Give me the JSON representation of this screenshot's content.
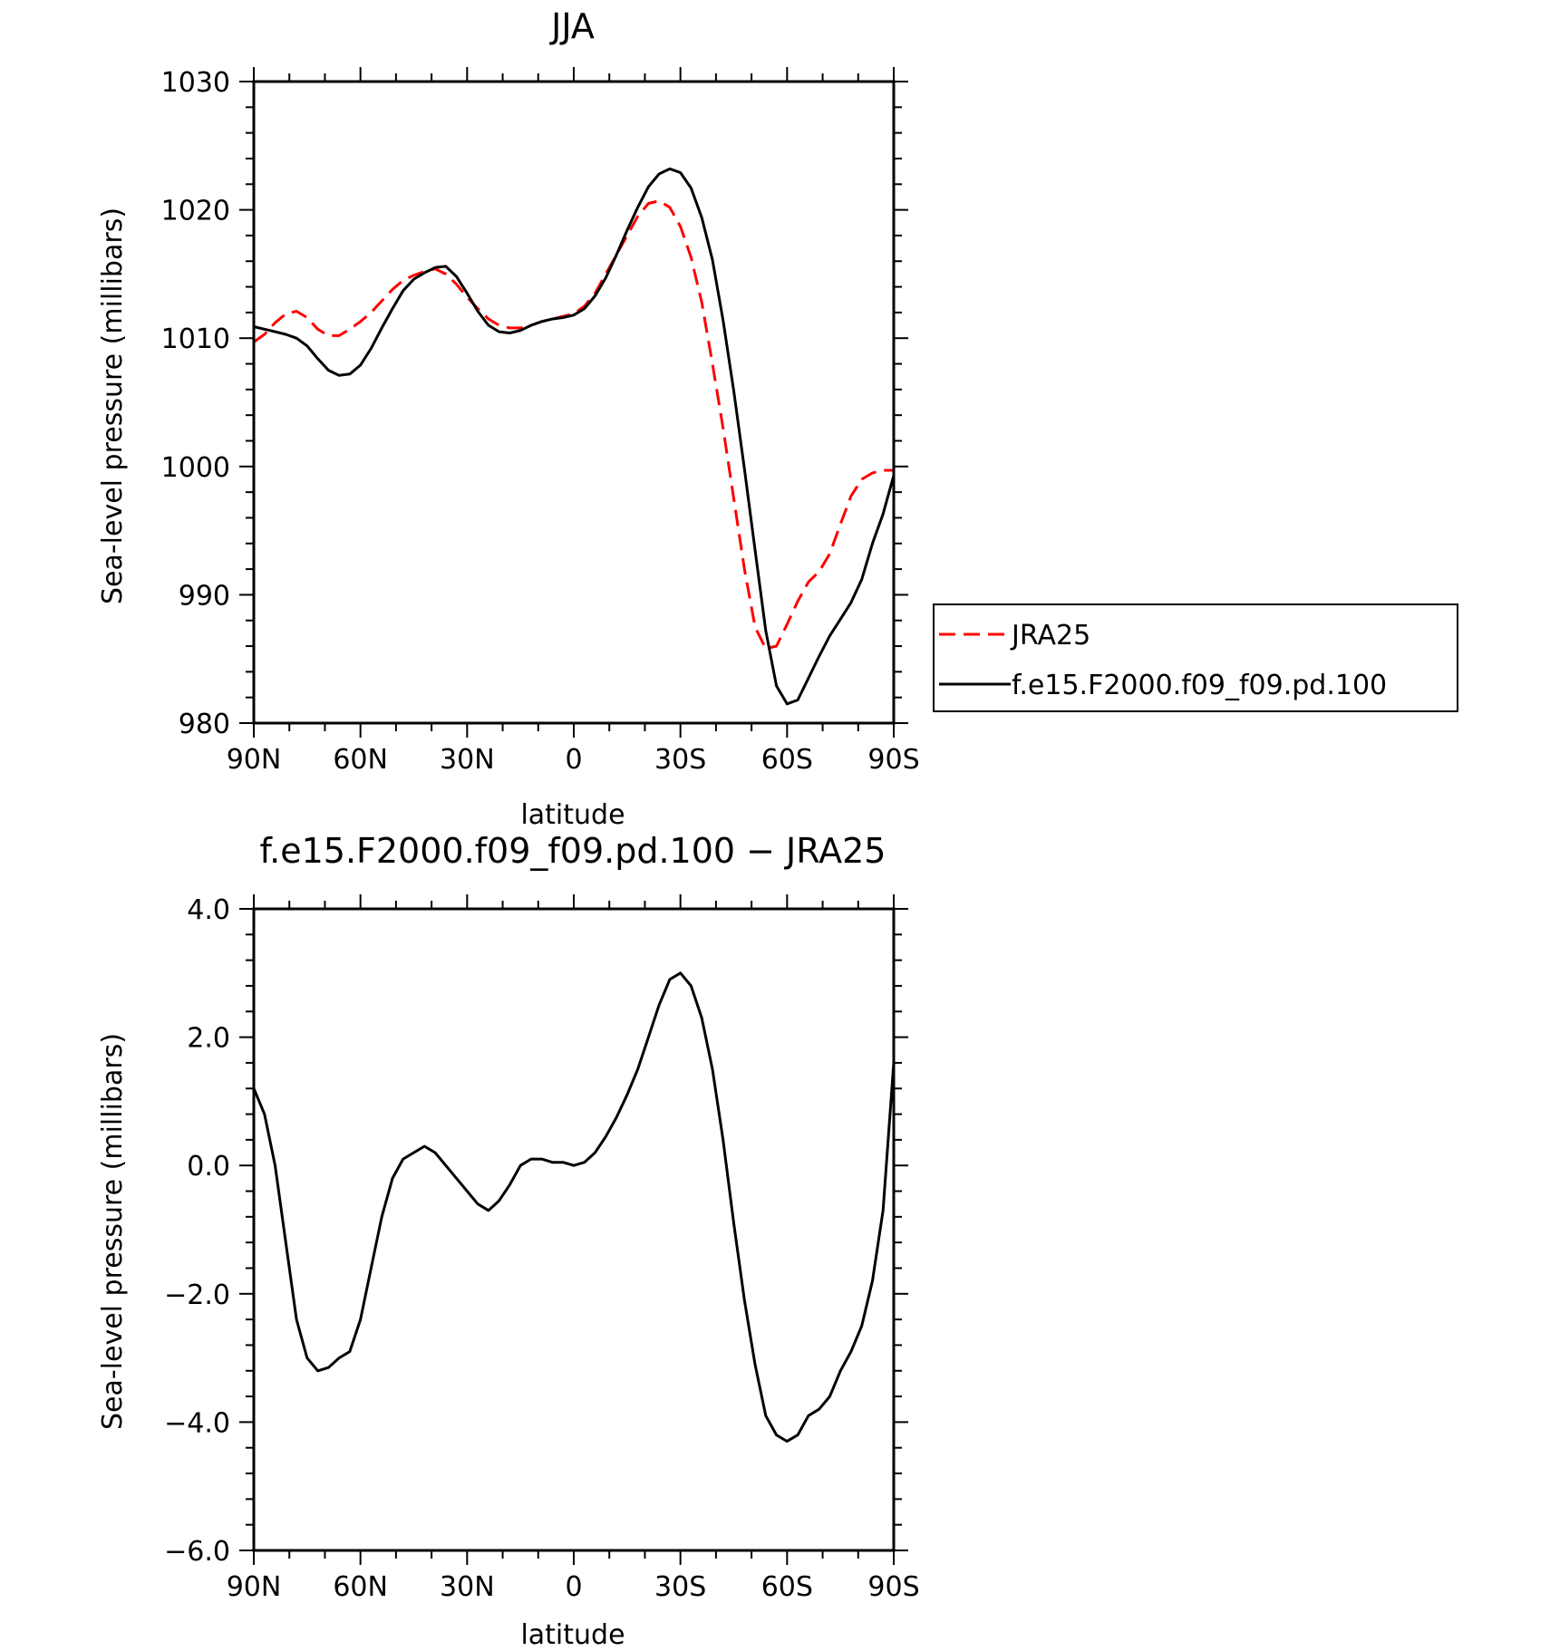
{
  "chart_data": [
    {
      "type": "line",
      "title": "JJA",
      "xlabel": "latitude",
      "ylabel": "Sea-level pressure (millibars)",
      "x_tick_labels": [
        "90N",
        "60N",
        "30N",
        "0",
        "30S",
        "60S",
        "90S"
      ],
      "x_tick_values": [
        -90,
        -60,
        -30,
        0,
        30,
        60,
        90
      ],
      "y_tick_labels": [
        "980",
        "990",
        "1000",
        "1010",
        "1020",
        "1030"
      ],
      "y_tick_values": [
        980,
        990,
        1000,
        1010,
        1020,
        1030
      ],
      "xlim": [
        -90,
        90
      ],
      "ylim": [
        980,
        1030
      ],
      "legend_position": "right",
      "series": [
        {
          "name": "JRA25",
          "color": "#ff0000",
          "dash": "dashed",
          "x": [
            -90,
            -87,
            -84,
            -81,
            -78,
            -75,
            -72,
            -69,
            -66,
            -63,
            -60,
            -57,
            -54,
            -51,
            -48,
            -45,
            -42,
            -39,
            -36,
            -33,
            -30,
            -27,
            -24,
            -21,
            -18,
            -15,
            -12,
            -9,
            -6,
            -3,
            0,
            3,
            6,
            9,
            12,
            15,
            18,
            21,
            24,
            27,
            30,
            33,
            36,
            39,
            42,
            45,
            48,
            51,
            54,
            57,
            60,
            63,
            66,
            69,
            72,
            75,
            78,
            81,
            84,
            87,
            90
          ],
          "y": [
            1009.7,
            1010.3,
            1011.2,
            1011.9,
            1012.1,
            1011.6,
            1010.7,
            1010.2,
            1010.2,
            1010.7,
            1011.3,
            1012.0,
            1012.9,
            1013.8,
            1014.5,
            1014.9,
            1015.2,
            1015.4,
            1015.0,
            1014.2,
            1013.2,
            1012.3,
            1011.5,
            1011.0,
            1010.8,
            1010.8,
            1011.0,
            1011.3,
            1011.5,
            1011.7,
            1011.9,
            1012.5,
            1013.5,
            1015.0,
            1016.5,
            1018.0,
            1019.5,
            1020.5,
            1020.7,
            1020.2,
            1018.7,
            1016.3,
            1012.8,
            1008.0,
            1003.0,
            997.5,
            992.0,
            987.5,
            985.8,
            986.0,
            987.7,
            989.5,
            991.0,
            991.8,
            993.2,
            995.5,
            997.7,
            999.0,
            999.5,
            999.7,
            999.7
          ]
        },
        {
          "name": "f.e15.F2000.f09_f09.pd.100",
          "color": "#000000",
          "dash": "solid",
          "x": [
            -90,
            -87,
            -84,
            -81,
            -78,
            -75,
            -72,
            -69,
            -66,
            -63,
            -60,
            -57,
            -54,
            -51,
            -48,
            -45,
            -42,
            -39,
            -36,
            -33,
            -30,
            -27,
            -24,
            -21,
            -18,
            -15,
            -12,
            -9,
            -6,
            -3,
            0,
            3,
            6,
            9,
            12,
            15,
            18,
            21,
            24,
            27,
            30,
            33,
            36,
            39,
            42,
            45,
            48,
            51,
            54,
            57,
            60,
            63,
            66,
            69,
            72,
            75,
            78,
            81,
            84,
            87,
            90
          ],
          "y": [
            1010.9,
            1010.7,
            1010.5,
            1010.3,
            1010.0,
            1009.4,
            1008.4,
            1007.5,
            1007.1,
            1007.2,
            1007.9,
            1009.2,
            1010.8,
            1012.3,
            1013.7,
            1014.6,
            1015.1,
            1015.5,
            1015.6,
            1014.8,
            1013.5,
            1012.1,
            1011.0,
            1010.5,
            1010.4,
            1010.6,
            1011.0,
            1011.3,
            1011.5,
            1011.6,
            1011.8,
            1012.3,
            1013.3,
            1014.7,
            1016.5,
            1018.4,
            1020.2,
            1021.8,
            1022.8,
            1023.2,
            1022.9,
            1021.7,
            1019.4,
            1016.1,
            1011.4,
            1005.9,
            999.8,
            993.5,
            987.2,
            982.9,
            981.5,
            981.8,
            983.5,
            985.2,
            986.8,
            988.1,
            989.4,
            991.2,
            994.0,
            996.3,
            999.3
          ]
        }
      ]
    },
    {
      "type": "line",
      "title": "f.e15.F2000.f09_f09.pd.100  −  JRA25",
      "xlabel": "latitude",
      "ylabel": "Sea-level pressure (millibars)",
      "x_tick_labels": [
        "90N",
        "60N",
        "30N",
        "0",
        "30S",
        "60S",
        "90S"
      ],
      "x_tick_values": [
        -90,
        -60,
        -30,
        0,
        30,
        60,
        90
      ],
      "y_tick_labels": [
        "−6.0",
        "−4.0",
        "−2.0",
        "0.0",
        "2.0",
        "4.0"
      ],
      "y_tick_values": [
        -6,
        -4,
        -2,
        0,
        2,
        4
      ],
      "xlim": [
        -90,
        90
      ],
      "ylim": [
        -6,
        4
      ],
      "series": [
        {
          "name": "",
          "color": "#000000",
          "dash": "solid",
          "x": [
            -90,
            -87,
            -84,
            -81,
            -78,
            -75,
            -72,
            -69,
            -66,
            -63,
            -60,
            -57,
            -54,
            -51,
            -48,
            -45,
            -42,
            -39,
            -36,
            -33,
            -30,
            -27,
            -24,
            -21,
            -18,
            -15,
            -12,
            -9,
            -6,
            -3,
            0,
            3,
            6,
            9,
            12,
            15,
            18,
            21,
            24,
            27,
            30,
            33,
            36,
            39,
            42,
            45,
            48,
            51,
            54,
            57,
            60,
            63,
            66,
            69,
            72,
            75,
            78,
            81,
            84,
            87,
            90
          ],
          "y": [
            1.2,
            0.8,
            0.0,
            -1.2,
            -2.4,
            -3.0,
            -3.2,
            -3.15,
            -3.0,
            -2.9,
            -2.4,
            -1.6,
            -0.8,
            -0.2,
            0.1,
            0.2,
            0.3,
            0.2,
            0.0,
            -0.2,
            -0.4,
            -0.6,
            -0.7,
            -0.55,
            -0.3,
            0.0,
            0.1,
            0.1,
            0.05,
            0.05,
            0.0,
            0.05,
            0.2,
            0.45,
            0.75,
            1.1,
            1.5,
            2.0,
            2.5,
            2.9,
            3.0,
            2.8,
            2.3,
            1.5,
            0.4,
            -0.9,
            -2.1,
            -3.1,
            -3.9,
            -4.2,
            -4.3,
            -4.2,
            -3.9,
            -3.8,
            -3.6,
            -3.2,
            -2.9,
            -2.5,
            -1.8,
            -0.7,
            1.6
          ]
        }
      ]
    }
  ]
}
